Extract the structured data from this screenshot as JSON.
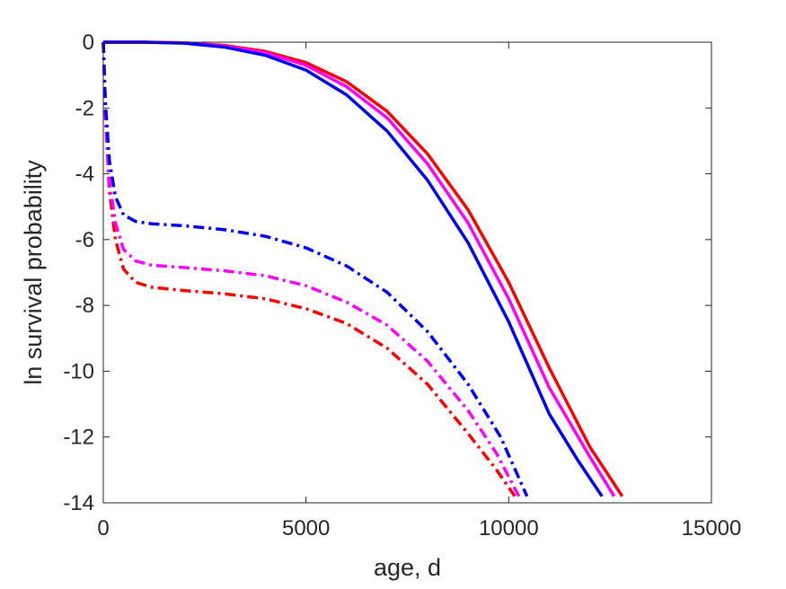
{
  "chart_data": {
    "type": "line",
    "title": "",
    "xlabel": "age, d",
    "ylabel": "ln survival probability",
    "xlim": [
      0,
      15000
    ],
    "ylim": [
      -14,
      0
    ],
    "xticks": [
      0,
      5000,
      10000,
      15000
    ],
    "yticks": [
      0,
      -2,
      -4,
      -6,
      -8,
      -10,
      -12,
      -14
    ],
    "xtick_labels": [
      "0",
      "5000",
      "10000",
      "15000"
    ],
    "ytick_labels": [
      "0",
      "-2",
      "-4",
      "-6",
      "-8",
      "-10",
      "-12",
      "-14"
    ],
    "grid": false,
    "box": true,
    "series": [
      {
        "color": "#ff0000",
        "style": "solid",
        "x": [
          0,
          1000,
          2000,
          3000,
          4000,
          5000,
          6000,
          7000,
          8000,
          9000,
          10000,
          11000,
          12000,
          12800
        ],
        "y": [
          0,
          0,
          -0.02,
          -0.1,
          -0.28,
          -0.62,
          -1.2,
          -2.1,
          -3.4,
          -5.1,
          -7.3,
          -9.9,
          -12.3,
          -13.8
        ]
      },
      {
        "color": "#ff00ff",
        "style": "solid",
        "x": [
          0,
          1000,
          2000,
          3000,
          4000,
          5000,
          6000,
          7000,
          8000,
          9000,
          10000,
          11000,
          12000,
          12600
        ],
        "y": [
          0,
          0,
          -0.02,
          -0.12,
          -0.32,
          -0.7,
          -1.35,
          -2.3,
          -3.7,
          -5.5,
          -7.8,
          -10.5,
          -12.6,
          -13.8
        ]
      },
      {
        "color": "#0000ff",
        "style": "solid",
        "x": [
          0,
          1000,
          2000,
          3000,
          4000,
          5000,
          6000,
          7000,
          8000,
          9000,
          10000,
          11000,
          11700,
          12300
        ],
        "y": [
          0,
          0,
          -0.03,
          -0.15,
          -0.4,
          -0.85,
          -1.6,
          -2.7,
          -4.2,
          -6.1,
          -8.5,
          -11.3,
          -12.7,
          -13.8
        ]
      },
      {
        "color": "#ff0000",
        "style": "dashdot",
        "x": [
          0,
          50,
          150,
          300,
          500,
          800,
          1200,
          2000,
          3000,
          4000,
          5000,
          6000,
          7000,
          8000,
          9000,
          9700,
          10150
        ],
        "y": [
          0,
          -2.2,
          -4.5,
          -6.0,
          -6.9,
          -7.3,
          -7.45,
          -7.55,
          -7.65,
          -7.8,
          -8.1,
          -8.55,
          -9.3,
          -10.4,
          -11.9,
          -13.0,
          -13.8
        ]
      },
      {
        "color": "#ff00ff",
        "style": "dashdot",
        "x": [
          0,
          50,
          150,
          300,
          500,
          800,
          1200,
          2000,
          3000,
          4000,
          5000,
          6000,
          7000,
          8000,
          9000,
          9700,
          10250
        ],
        "y": [
          0,
          -2.0,
          -4.2,
          -5.5,
          -6.3,
          -6.65,
          -6.78,
          -6.85,
          -6.95,
          -7.1,
          -7.4,
          -7.9,
          -8.6,
          -9.7,
          -11.2,
          -12.5,
          -13.8
        ]
      },
      {
        "color": "#0000ff",
        "style": "dashdot",
        "x": [
          0,
          50,
          150,
          300,
          500,
          800,
          1200,
          2000,
          3000,
          4000,
          5000,
          6000,
          7000,
          8000,
          9000,
          9800,
          10450
        ],
        "y": [
          0,
          -1.8,
          -3.6,
          -4.7,
          -5.25,
          -5.45,
          -5.52,
          -5.58,
          -5.7,
          -5.9,
          -6.25,
          -6.8,
          -7.6,
          -8.8,
          -10.4,
          -12.0,
          -13.8
        ]
      }
    ]
  }
}
